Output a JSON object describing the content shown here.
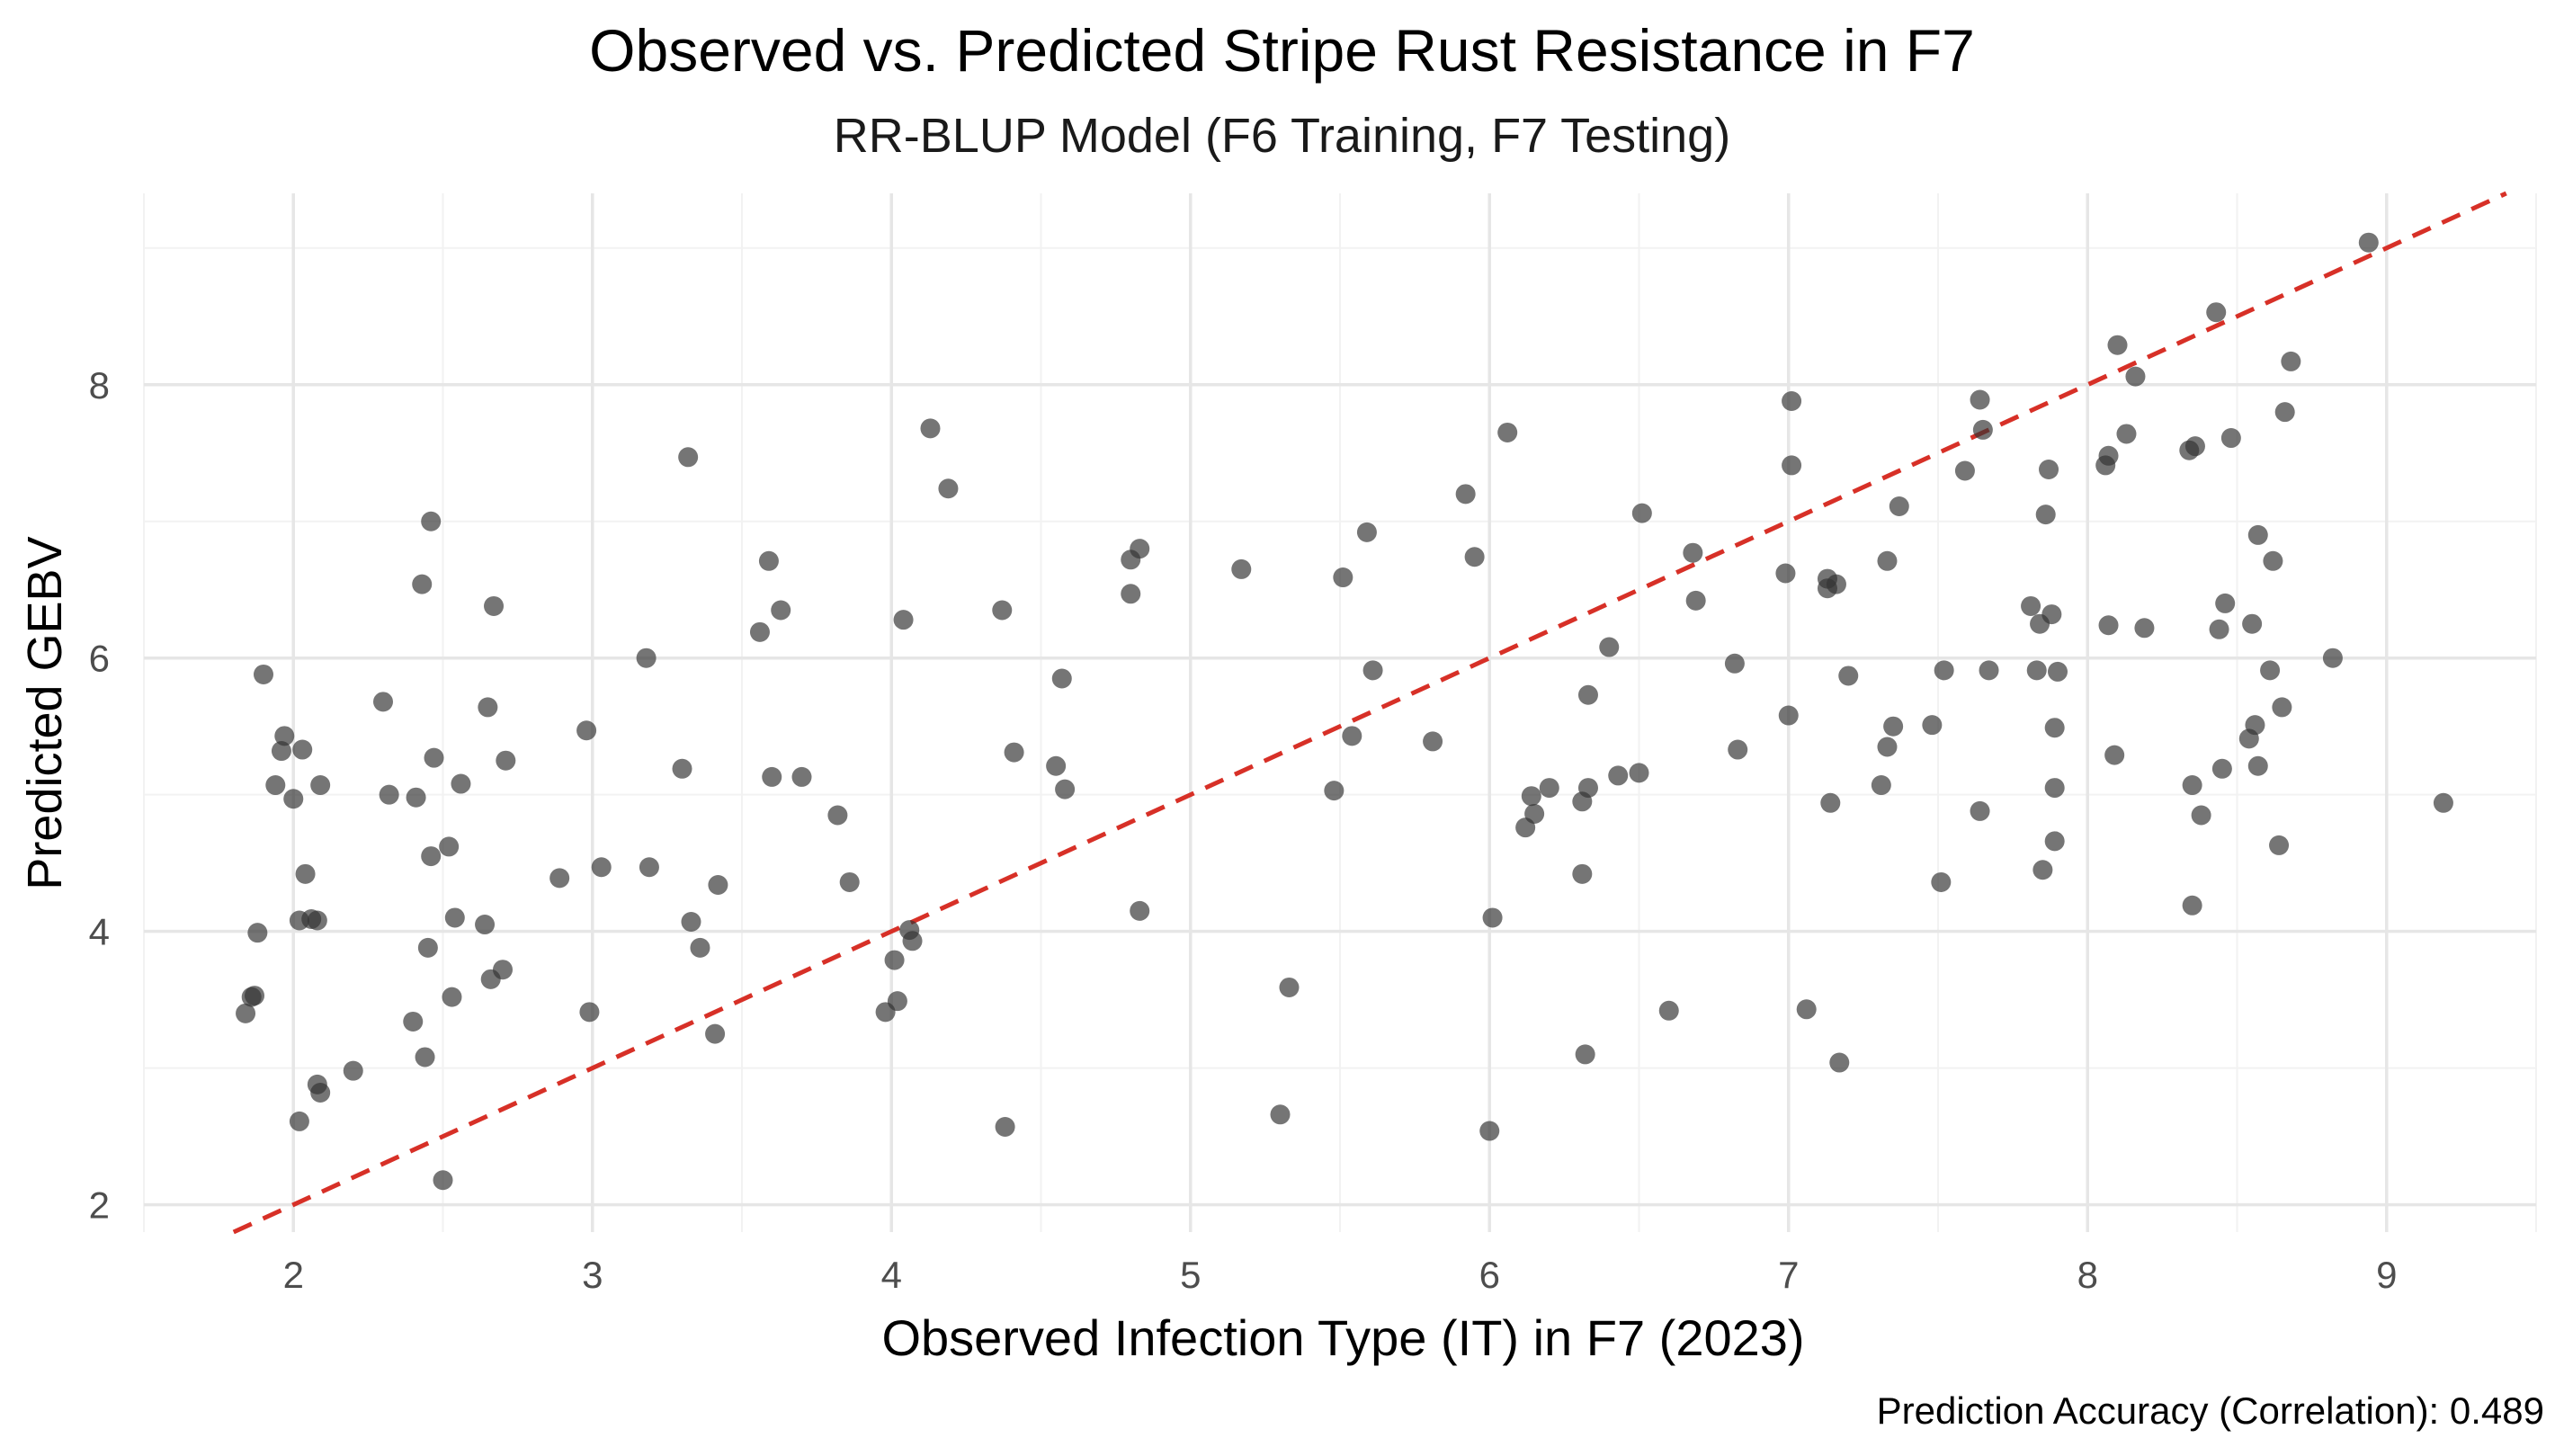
{
  "chart_data": {
    "type": "scatter",
    "title": "Observed vs. Predicted Stripe Rust Resistance in F7",
    "subtitle": "RR-BLUP Model (F6 Training, F7 Testing)",
    "xlabel": "Observed Infection Type (IT) in F7 (2023)",
    "ylabel": "Predicted GEBV",
    "caption": "Prediction Accuracy (Correlation): 0.489",
    "xlim": [
      1.5,
      9.5
    ],
    "ylim": [
      1.8,
      9.4
    ],
    "xticks": [
      2,
      3,
      4,
      5,
      6,
      7,
      8,
      9
    ],
    "yticks": [
      2,
      4,
      6,
      8
    ],
    "grid": true,
    "reference_line": {
      "slope": 1,
      "intercept": 0,
      "style": "dashed",
      "color": "#d73027"
    },
    "point_color": "#333333",
    "x": [
      1.84,
      1.86,
      1.87,
      1.88,
      1.9,
      1.94,
      1.96,
      1.97,
      2.0,
      2.02,
      2.03,
      2.04,
      2.06,
      2.08,
      2.08,
      2.09,
      2.09,
      2.02,
      2.2,
      2.3,
      2.32,
      2.4,
      2.41,
      2.43,
      2.44,
      2.45,
      2.46,
      2.46,
      2.47,
      2.5,
      2.52,
      2.53,
      2.54,
      2.56,
      2.64,
      2.65,
      2.66,
      2.67,
      2.7,
      2.71,
      2.89,
      2.98,
      2.99,
      3.03,
      3.18,
      3.19,
      3.3,
      3.32,
      3.33,
      3.36,
      3.41,
      3.42,
      3.56,
      3.59,
      3.6,
      3.63,
      3.7,
      3.82,
      3.86,
      3.98,
      4.01,
      4.02,
      4.04,
      4.06,
      4.07,
      4.13,
      4.19,
      4.37,
      4.38,
      4.41,
      4.55,
      4.57,
      4.58,
      4.8,
      4.8,
      4.83,
      4.83,
      5.17,
      5.3,
      5.33,
      5.48,
      5.51,
      5.54,
      5.59,
      5.61,
      5.81,
      5.92,
      5.95,
      6.0,
      6.01,
      6.06,
      6.12,
      6.14,
      6.15,
      6.2,
      6.31,
      6.31,
      6.32,
      6.33,
      6.33,
      6.4,
      6.43,
      6.5,
      6.51,
      6.6,
      6.68,
      6.69,
      6.82,
      6.83,
      6.99,
      7.0,
      7.01,
      7.01,
      7.06,
      7.13,
      7.13,
      7.14,
      7.16,
      7.17,
      7.2,
      7.31,
      7.33,
      7.33,
      7.35,
      7.37,
      7.48,
      7.51,
      7.52,
      7.59,
      7.64,
      7.64,
      7.65,
      7.67,
      7.81,
      7.83,
      7.84,
      7.85,
      7.86,
      7.87,
      7.88,
      7.89,
      7.89,
      7.89,
      7.9,
      8.06,
      8.07,
      8.07,
      8.09,
      8.1,
      8.13,
      8.16,
      8.19,
      8.34,
      8.35,
      8.35,
      8.36,
      8.38,
      8.43,
      8.44,
      8.45,
      8.46,
      8.48,
      8.54,
      8.55,
      8.56,
      8.57,
      8.57,
      8.61,
      8.62,
      8.64,
      8.65,
      8.66,
      8.68,
      8.82,
      8.94,
      9.19
    ],
    "y": [
      3.4,
      3.52,
      3.53,
      3.99,
      5.88,
      5.07,
      5.32,
      5.43,
      4.97,
      2.61,
      5.33,
      4.42,
      4.09,
      4.08,
      2.88,
      5.07,
      2.82,
      4.08,
      2.98,
      5.68,
      5.0,
      3.34,
      4.98,
      6.54,
      3.08,
      3.88,
      7.0,
      4.55,
      5.27,
      2.18,
      4.62,
      3.52,
      4.1,
      5.08,
      4.05,
      5.64,
      3.65,
      6.38,
      3.72,
      5.25,
      4.39,
      5.47,
      3.41,
      4.47,
      6.0,
      4.47,
      5.19,
      7.47,
      4.07,
      3.88,
      3.25,
      4.34,
      6.19,
      6.71,
      5.13,
      6.35,
      5.13,
      4.85,
      4.36,
      3.41,
      3.79,
      3.49,
      6.28,
      4.01,
      3.93,
      7.68,
      7.24,
      6.35,
      2.57,
      5.31,
      5.21,
      5.85,
      5.04,
      6.72,
      6.47,
      6.8,
      4.15,
      6.65,
      2.66,
      3.59,
      5.03,
      6.59,
      5.43,
      6.92,
      5.91,
      5.39,
      7.2,
      6.74,
      2.54,
      4.1,
      7.65,
      4.76,
      4.99,
      4.86,
      5.05,
      4.42,
      4.95,
      3.1,
      5.73,
      5.05,
      6.08,
      5.14,
      5.16,
      7.06,
      3.42,
      6.77,
      6.42,
      5.96,
      5.33,
      6.62,
      5.58,
      7.88,
      7.41,
      3.43,
      6.58,
      6.51,
      4.94,
      6.54,
      3.04,
      5.87,
      5.07,
      6.71,
      5.35,
      5.5,
      7.11,
      5.51,
      4.36,
      5.91,
      7.37,
      7.89,
      4.88,
      7.67,
      5.91,
      6.38,
      5.91,
      6.25,
      4.45,
      7.05,
      7.38,
      6.32,
      4.66,
      5.49,
      5.05,
      5.9,
      7.41,
      7.48,
      6.24,
      5.29,
      8.29,
      7.64,
      8.06,
      6.22,
      7.52,
      4.19,
      5.07,
      7.55,
      4.85,
      8.53,
      6.21,
      5.19,
      6.4,
      7.61,
      5.41,
      6.25,
      5.51,
      6.9,
      5.21,
      5.91,
      6.71,
      4.63,
      5.64,
      7.8,
      8.17,
      6.0,
      9.04,
      4.94
    ]
  }
}
